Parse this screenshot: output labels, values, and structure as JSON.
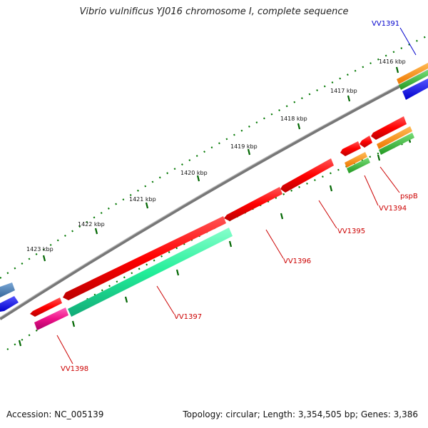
{
  "title": "Vibrio vulnificus YJ016 chromosome I, complete sequence",
  "footer": {
    "accession": "Accession: NC_005139",
    "summary": "Topology: circular; Length: 3,354,505 bp; Genes: 3,386"
  },
  "scale": {
    "ticks": [
      "1416 kbp",
      "1417 kbp",
      "1418 kbp",
      "1419 kbp",
      "1420 kbp",
      "1421 kbp",
      "1422 kbp",
      "1423 kbp"
    ]
  },
  "genes": [
    {
      "label": "VV1391",
      "color": "#0000cc"
    },
    {
      "label": "pspB",
      "color": "#cc0000"
    },
    {
      "label": "VV1394",
      "color": "#cc0000"
    },
    {
      "label": "VV1395",
      "color": "#cc0000"
    },
    {
      "label": "VV1396",
      "color": "#cc0000"
    },
    {
      "label": "VV1397",
      "color": "#cc0000"
    },
    {
      "label": "VV1398",
      "color": "#cc0000"
    }
  ],
  "colors": {
    "backbone": "#888888",
    "cds": "#ff0000",
    "gene_cyan": "#22ee99",
    "gene_magenta": "#ee1188",
    "gene_orange": "#ff8800",
    "gene_green": "#33bb33",
    "gene_blue": "#0000ff",
    "gene_steel": "#4a7fb5",
    "tick": "#006600"
  }
}
